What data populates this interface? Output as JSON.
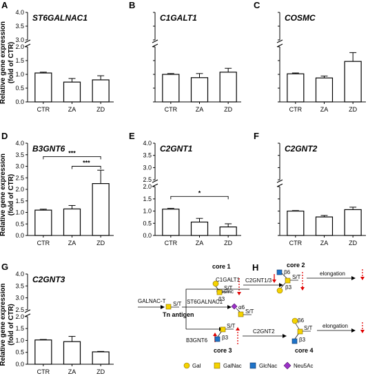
{
  "chart_data": [
    {
      "type": "bar",
      "panel": "A",
      "title": "ST6GALNAC1",
      "ylabel": "Relative gene expression (fold of CTR)",
      "ylabel_lines": [
        "Relative gene expression",
        "(fold of CTR)"
      ],
      "categories": [
        "CTR",
        "ZA",
        "ZD"
      ],
      "values": [
        1.05,
        0.72,
        0.8
      ],
      "errors": [
        0.03,
        0.13,
        0.15
      ],
      "ylim_lower": [
        0,
        2.0
      ],
      "ylim_upper": [
        3.0,
        4.0
      ],
      "yticks_lower": [
        "0.0",
        "0.5",
        "1.0",
        "1.5",
        "2.0"
      ],
      "yticks_upper": [
        "3.0",
        "3.5",
        "4.0"
      ],
      "significance": []
    },
    {
      "type": "bar",
      "panel": "B",
      "title": "C1GALT1",
      "ylabel": "",
      "categories": [
        "CTR",
        "ZA",
        "ZD"
      ],
      "values": [
        1.0,
        0.88,
        1.08
      ],
      "errors": [
        0.03,
        0.15,
        0.14
      ],
      "ylim_lower": [
        0,
        2.0
      ],
      "ylim_upper": [
        3.0,
        4.0
      ],
      "yticks_lower": [],
      "yticks_upper": [],
      "significance": []
    },
    {
      "type": "bar",
      "panel": "C",
      "title": "COSMC",
      "ylabel": "",
      "categories": [
        "CTR",
        "ZA",
        "ZD"
      ],
      "values": [
        1.02,
        0.87,
        1.47
      ],
      "errors": [
        0.03,
        0.07,
        0.32
      ],
      "ylim_lower": [
        0,
        2.0
      ],
      "ylim_upper": [
        3.0,
        4.0
      ],
      "yticks_lower": [],
      "yticks_upper": [],
      "significance": []
    },
    {
      "type": "bar",
      "panel": "D",
      "title": "B3GNT6",
      "ylabel": "Relative gene expression (fold of CTR)",
      "ylabel_lines": [
        "Relative gene expression",
        "(fold of CTR)"
      ],
      "categories": [
        "CTR",
        "ZA",
        "ZD"
      ],
      "values": [
        1.1,
        1.15,
        2.25
      ],
      "errors": [
        0.04,
        0.15,
        0.58
      ],
      "ylim": [
        0,
        4.0
      ],
      "yticks": [
        "0.0",
        "0.5",
        "1.0",
        "1.5",
        "2.0",
        "2.5",
        "3.0",
        "3.5",
        "4.0"
      ],
      "significance": [
        {
          "from": "CTR",
          "to": "ZD",
          "label": "***",
          "y": 3.42
        },
        {
          "from": "ZA",
          "to": "ZD",
          "label": "***",
          "y": 3.0
        }
      ]
    },
    {
      "type": "bar",
      "panel": "E",
      "title": "C2GNT1",
      "ylabel": "",
      "categories": [
        "CTR",
        "ZA",
        "ZD"
      ],
      "values": [
        1.08,
        0.55,
        0.35
      ],
      "errors": [
        0.03,
        0.15,
        0.13
      ],
      "ylim_lower": [
        0,
        2.0
      ],
      "ylim_upper": [
        2.5,
        4.0
      ],
      "yticks_lower": [
        "0.0",
        "0.5",
        "1.0",
        "1.5",
        "2.0"
      ],
      "yticks_upper": [
        "2.5",
        "3.0",
        "3.5",
        "4.0"
      ],
      "significance": [
        {
          "from": "CTR",
          "to": "ZD",
          "label": "*",
          "y": 1.6
        }
      ]
    },
    {
      "type": "bar",
      "panel": "F",
      "title": "C2GNT2",
      "ylabel": "",
      "categories": [
        "CTR",
        "ZA",
        "ZD"
      ],
      "values": [
        1.0,
        0.76,
        1.06
      ],
      "errors": [
        0.02,
        0.06,
        0.1
      ],
      "ylim_lower": [
        0,
        2.0
      ],
      "ylim_upper": [
        2.5,
        4.0
      ],
      "yticks_lower": [],
      "yticks_upper": [],
      "significance": []
    },
    {
      "type": "bar",
      "panel": "G",
      "title": "C2GNT3",
      "ylabel": "Relative gene expression (fold of CTR)",
      "ylabel_lines": [
        "Relative gene expression",
        "(fold of CTR)"
      ],
      "categories": [
        "CTR",
        "ZA",
        "ZD"
      ],
      "values": [
        1.02,
        0.95,
        0.52
      ],
      "errors": [
        0.02,
        0.22,
        0.02
      ],
      "ylim_lower": [
        0,
        2.0
      ],
      "ylim_upper": [
        2.5,
        4.0
      ],
      "yticks_lower": [
        "0.0",
        "0.5",
        "1.0",
        "1.5",
        "2.0"
      ],
      "yticks_upper": [
        "2.5",
        "3.0",
        "3.5",
        "4.0"
      ],
      "significance": []
    }
  ],
  "diagram": {
    "panel": "H",
    "labels": {
      "core1": "core 1",
      "core2": "core 2",
      "core3": "core 3",
      "core4": "core 4",
      "tn": "Tn antigen",
      "galnact": "GALNAC-T",
      "c1galt1": "C1GALT1",
      "cosmc": "Cosmc",
      "st6": "ST6GALNAC1",
      "b3gnt6": "B3GNT6",
      "c2gnt13": "C2GNT1/3",
      "c2gnt2": "C2GNT2",
      "elong1": "elongation",
      "elong2": "elongation",
      "st": "S/T",
      "b3": "β3",
      "b6": "β6",
      "a6": "α6"
    },
    "legend": [
      "Gal",
      "GalNac",
      "GlcNac",
      "Neu5Ac"
    ],
    "colors": {
      "Gal": "#f5d300",
      "GalNac": "#f5d300",
      "GlcNac": "#1e73c8",
      "Neu5Ac": "#9b30c8",
      "arrow_red": "#e00000"
    }
  }
}
